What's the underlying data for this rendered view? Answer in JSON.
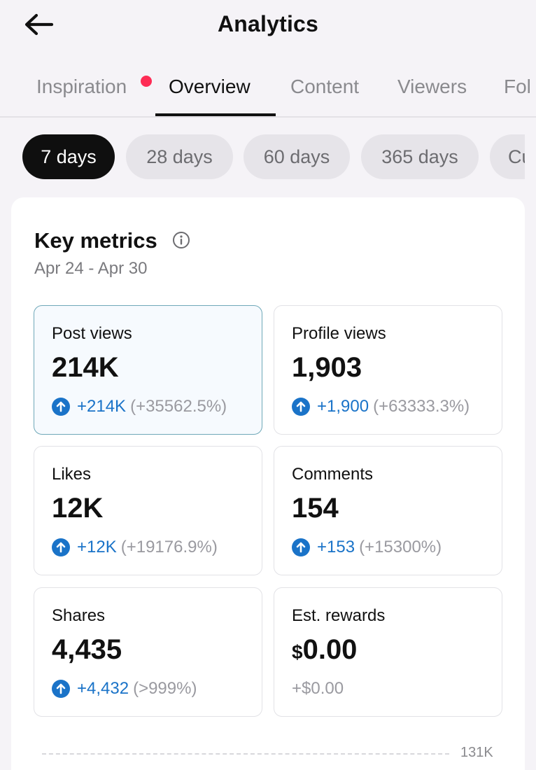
{
  "header": {
    "title": "Analytics",
    "back_icon": "arrow-left-icon"
  },
  "tabs": [
    {
      "label": "Inspiration",
      "has_notification": true
    },
    {
      "label": "Overview",
      "active": true
    },
    {
      "label": "Content"
    },
    {
      "label": "Viewers"
    },
    {
      "label": "Fol"
    }
  ],
  "periods": [
    {
      "label": "7 days",
      "active": true
    },
    {
      "label": "28 days"
    },
    {
      "label": "60 days"
    },
    {
      "label": "365 days"
    },
    {
      "label": "Cu"
    }
  ],
  "key_metrics": {
    "title": "Key metrics",
    "date_range": "Apr 24 - Apr 30",
    "metrics": [
      {
        "label": "Post views",
        "value": "214K",
        "delta": "+214K",
        "pct": "(+35562.5%)",
        "selected": true
      },
      {
        "label": "Profile views",
        "value": "1,903",
        "delta": "+1,900",
        "pct": "(+63333.3%)"
      },
      {
        "label": "Likes",
        "value": "12K",
        "delta": "+12K",
        "pct": "(+19176.9%)"
      },
      {
        "label": "Comments",
        "value": "154",
        "delta": "+153",
        "pct": "(+15300%)"
      },
      {
        "label": "Shares",
        "value": "4,435",
        "delta": "+4,432",
        "pct": "(>999%)"
      },
      {
        "label": "Est. rewards",
        "currency": "$",
        "value": "0.00",
        "delta": "+$0.00"
      }
    ]
  },
  "chart": {
    "max_label": "131K"
  },
  "colors": {
    "accent": "#1a73c8",
    "notification": "#fe2c55",
    "active_chip": "#0f0f0f"
  }
}
